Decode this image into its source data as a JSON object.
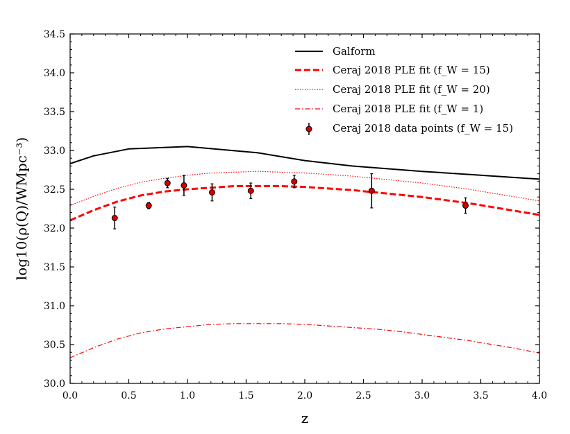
{
  "chart_data": {
    "type": "line",
    "title": "",
    "xlabel": "z",
    "ylabel": "log10(ρ(Q)/WMpc⁻³)",
    "xlim": [
      0.0,
      4.0
    ],
    "ylim": [
      30.0,
      34.5
    ],
    "xticks": [
      "0.0",
      "0.5",
      "1.0",
      "1.5",
      "2.0",
      "2.5",
      "3.0",
      "3.5",
      "4.0"
    ],
    "yticks": [
      "30.0",
      "30.5",
      "31.0",
      "31.5",
      "32.0",
      "32.5",
      "33.0",
      "33.5",
      "34.0",
      "34.5"
    ],
    "legend_position": "top-right",
    "series": [
      {
        "name": "Galform",
        "style": "solid",
        "color": "#000000",
        "x": [
          0.0,
          0.2,
          0.5,
          1.0,
          1.6,
          2.0,
          2.4,
          3.0,
          3.5,
          4.0
        ],
        "y": [
          32.83,
          32.93,
          33.02,
          33.05,
          32.97,
          32.87,
          32.8,
          32.73,
          32.68,
          32.63
        ]
      },
      {
        "name": "Ceraj 2018 PLE fit (f_W = 15)",
        "style": "dashed",
        "color": "#ff0000",
        "x": [
          0.0,
          0.2,
          0.4,
          0.6,
          0.8,
          1.0,
          1.2,
          1.4,
          1.6,
          1.8,
          2.0,
          2.2,
          2.4,
          2.6,
          2.8,
          3.0,
          3.2,
          3.4,
          3.6,
          3.8,
          4.0
        ],
        "y": [
          32.1,
          32.23,
          32.34,
          32.42,
          32.47,
          32.5,
          32.52,
          32.54,
          32.54,
          32.54,
          32.53,
          32.51,
          32.49,
          32.46,
          32.43,
          32.4,
          32.36,
          32.32,
          32.27,
          32.22,
          32.17
        ]
      },
      {
        "name": "Ceraj 2018 PLE fit (f_W = 20)",
        "style": "dotted",
        "color": "#ff0000",
        "x": [
          0.0,
          0.2,
          0.4,
          0.6,
          0.8,
          1.0,
          1.2,
          1.4,
          1.6,
          1.8,
          2.0,
          2.2,
          2.4,
          2.6,
          2.8,
          3.0,
          3.2,
          3.4,
          3.6,
          3.8,
          4.0
        ],
        "y": [
          32.29,
          32.41,
          32.51,
          32.59,
          32.64,
          32.68,
          32.71,
          32.72,
          32.73,
          32.72,
          32.71,
          32.69,
          32.67,
          32.64,
          32.61,
          32.58,
          32.54,
          32.5,
          32.45,
          32.4,
          32.35
        ]
      },
      {
        "name": "Ceraj 2018 PLE fit (f_W = 1)",
        "style": "dashdot",
        "color": "#ff0000",
        "x": [
          0.0,
          0.2,
          0.4,
          0.6,
          0.8,
          1.0,
          1.2,
          1.4,
          1.6,
          1.8,
          2.0,
          2.2,
          2.4,
          2.6,
          2.8,
          3.0,
          3.2,
          3.4,
          3.6,
          3.8,
          4.0
        ],
        "y": [
          30.33,
          30.46,
          30.57,
          30.65,
          30.7,
          30.73,
          30.76,
          30.77,
          30.77,
          30.77,
          30.76,
          30.74,
          30.72,
          30.7,
          30.67,
          30.63,
          30.59,
          30.55,
          30.5,
          30.45,
          30.39
        ]
      }
    ],
    "data_points": {
      "name": "Ceraj 2018 data points (f_W = 15)",
      "color": "#d40000",
      "points": [
        {
          "x": 0.38,
          "y": 32.13,
          "err": 0.14
        },
        {
          "x": 0.67,
          "y": 32.29,
          "err": 0.04
        },
        {
          "x": 0.83,
          "y": 32.58,
          "err": 0.06
        },
        {
          "x": 0.97,
          "y": 32.55,
          "err": 0.13
        },
        {
          "x": 1.21,
          "y": 32.46,
          "err": 0.11
        },
        {
          "x": 1.54,
          "y": 32.48,
          "err": 0.1
        },
        {
          "x": 1.91,
          "y": 32.6,
          "err": 0.08
        },
        {
          "x": 2.57,
          "y": 32.48,
          "err": 0.22
        },
        {
          "x": 3.37,
          "y": 32.29,
          "err": 0.1
        }
      ]
    }
  }
}
